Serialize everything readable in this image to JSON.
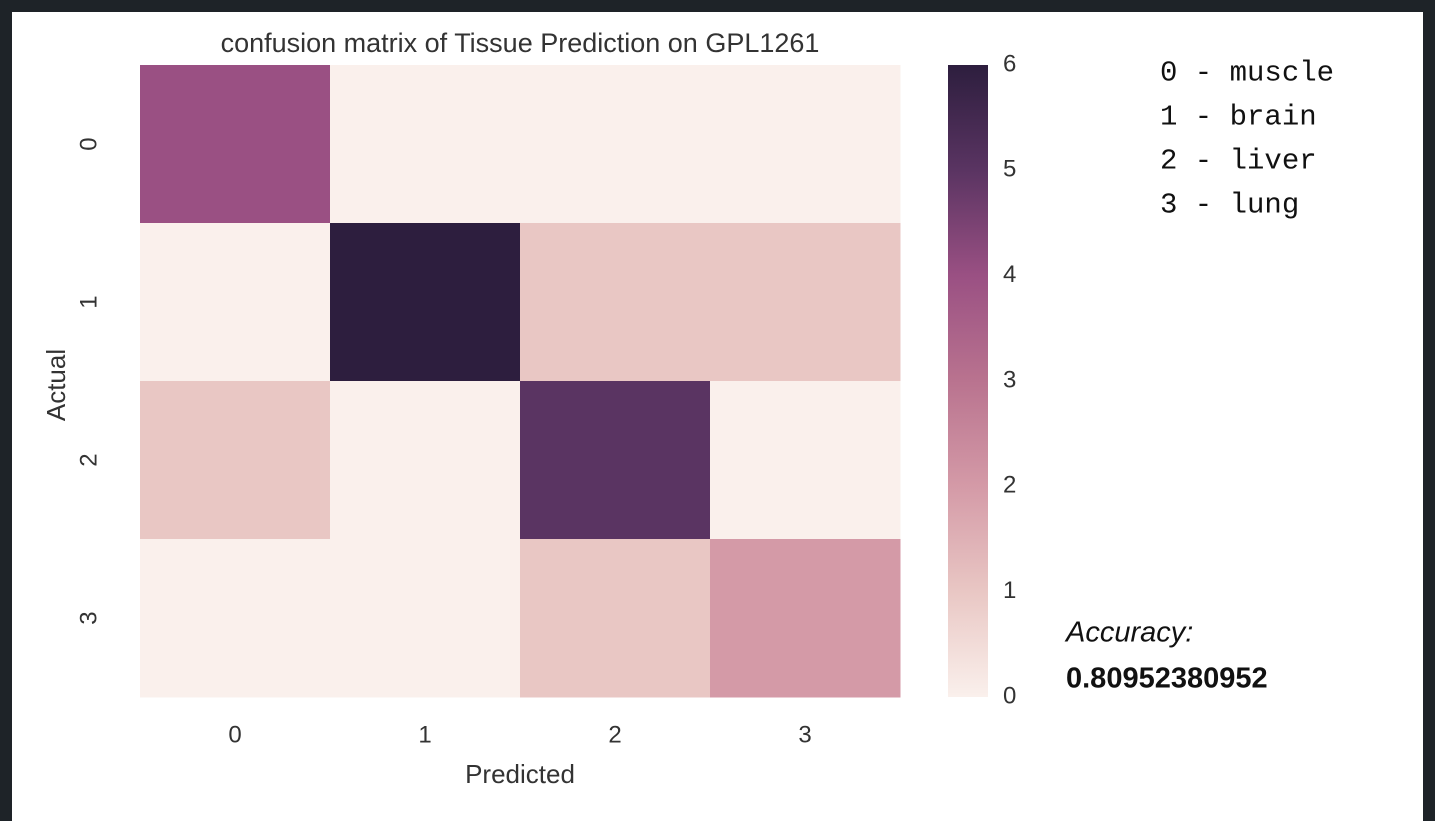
{
  "chart_data": {
    "type": "heatmap",
    "title": "confusion matrix of Tissue Prediction on GPL1261",
    "xlabel": "Predicted",
    "ylabel": "Actual",
    "x_categories": [
      "0",
      "1",
      "2",
      "3"
    ],
    "y_categories": [
      "0",
      "1",
      "2",
      "3"
    ],
    "values": [
      [
        4,
        0,
        0,
        0
      ],
      [
        0,
        6,
        1,
        1
      ],
      [
        1,
        0,
        5,
        0
      ],
      [
        0,
        0,
        1,
        2
      ]
    ],
    "zlim": [
      0,
      6
    ],
    "zticks": [
      0,
      1,
      2,
      3,
      4,
      5,
      6
    ],
    "colorscale": [
      "#faf0ec",
      "#e9c7c4",
      "#d49aa7",
      "#b9738f",
      "#9a5083",
      "#5a3462",
      "#2d1e3e"
    ],
    "legend_notes": [
      "0 - muscle",
      "1 - brain",
      "2 - liver",
      "3 - lung"
    ],
    "annotation": {
      "label": "Accuracy:",
      "value": 0.80952380952
    }
  }
}
